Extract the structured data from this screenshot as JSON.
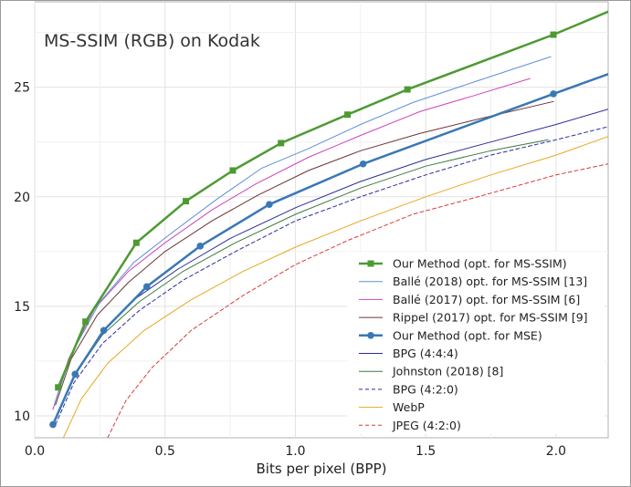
{
  "chart_data": {
    "type": "line",
    "title": "MS-SSIM (RGB) on Kodak",
    "xlabel": "Bits per pixel (BPP)",
    "ylabel": "",
    "xlim": [
      0.0,
      2.2
    ],
    "ylim": [
      9.0,
      28.9
    ],
    "xticks": [
      0.0,
      0.5,
      1.0,
      1.5,
      2.0
    ],
    "xtick_labels": [
      "0.0",
      "0.5",
      "1.0",
      "1.5",
      "2.0"
    ],
    "yticks": [
      10,
      15,
      20,
      25
    ],
    "ytick_labels": [
      "10",
      "15",
      "20",
      "25"
    ],
    "grid": true,
    "legend_position": "bottom-right",
    "series": [
      {
        "name": "Our Method (opt. for MS-SSIM)",
        "color": "#4d9a32",
        "style": "solid",
        "width": 2.5,
        "marker": "square",
        "x": [
          0.09,
          0.195,
          0.39,
          0.58,
          0.76,
          0.945,
          1.2,
          1.43,
          1.99,
          2.2
        ],
        "y": [
          11.3,
          14.3,
          17.9,
          19.8,
          21.2,
          22.45,
          23.75,
          24.9,
          27.4,
          28.45
        ]
      },
      {
        "name": "Ballé (2018) opt. for MS-SSIM [13]",
        "color": "#5e8fd9",
        "style": "solid",
        "width": 1.0,
        "marker": "none",
        "x": [
          0.075,
          0.14,
          0.25,
          0.38,
          0.52,
          0.7,
          0.87,
          1.05,
          1.25,
          1.45,
          1.7,
          1.98
        ],
        "y": [
          10.5,
          12.8,
          15.2,
          17.0,
          18.3,
          19.9,
          21.3,
          22.2,
          23.3,
          24.3,
          25.3,
          26.4
        ]
      },
      {
        "name": "Ballé (2017) opt. for MS-SSIM [6]",
        "color": "#cc44bb",
        "style": "solid",
        "width": 1.0,
        "marker": "none",
        "x": [
          0.07,
          0.13,
          0.23,
          0.36,
          0.5,
          0.68,
          0.85,
          1.05,
          1.25,
          1.48,
          1.68,
          1.9
        ],
        "y": [
          10.3,
          12.6,
          14.9,
          16.6,
          17.9,
          19.4,
          20.6,
          21.8,
          22.8,
          23.9,
          24.6,
          25.4
        ]
      },
      {
        "name": "Rippel (2017) opt. for MS-SSIM [9]",
        "color": "#6b3535",
        "style": "solid",
        "width": 1.0,
        "marker": "none",
        "x": [
          0.08,
          0.14,
          0.24,
          0.36,
          0.5,
          0.68,
          0.86,
          1.05,
          1.25,
          1.48,
          1.72,
          1.99
        ],
        "y": [
          10.5,
          12.6,
          14.6,
          16.1,
          17.5,
          18.9,
          20.1,
          21.2,
          22.1,
          22.9,
          23.6,
          24.35
        ]
      },
      {
        "name": "Our Method (opt. for MSE)",
        "color": "#3a78b4",
        "style": "solid",
        "width": 2.5,
        "marker": "circle",
        "x": [
          0.07,
          0.155,
          0.265,
          0.43,
          0.635,
          0.9,
          1.26,
          1.99,
          2.2
        ],
        "y": [
          9.6,
          11.9,
          13.9,
          15.9,
          17.75,
          19.65,
          21.5,
          24.7,
          25.6
        ]
      },
      {
        "name": "BPG (4:4:4)",
        "color": "#2c2c9a",
        "style": "solid",
        "width": 1.0,
        "marker": "none",
        "x": [
          0.08,
          0.15,
          0.25,
          0.38,
          0.55,
          0.75,
          1.0,
          1.25,
          1.5,
          1.75,
          2.0,
          2.2
        ],
        "y": [
          9.8,
          11.8,
          13.7,
          15.3,
          16.7,
          18.1,
          19.5,
          20.7,
          21.7,
          22.5,
          23.3,
          24.0
        ]
      },
      {
        "name": "Johnston (2018) [8]",
        "color": "#3d7a3d",
        "style": "solid",
        "width": 1.0,
        "marker": "none",
        "x": [
          0.08,
          0.15,
          0.26,
          0.4,
          0.57,
          0.77,
          1.0,
          1.25,
          1.5,
          1.75,
          1.97
        ],
        "y": [
          9.9,
          11.8,
          13.7,
          15.2,
          16.6,
          17.9,
          19.2,
          20.4,
          21.4,
          22.1,
          22.6
        ]
      },
      {
        "name": "BPG (4:2:0)",
        "color": "#2c2c9a",
        "style": "dashed",
        "width": 1.0,
        "marker": "none",
        "x": [
          0.08,
          0.15,
          0.26,
          0.4,
          0.57,
          0.77,
          1.0,
          1.25,
          1.5,
          1.75,
          2.0,
          2.2
        ],
        "y": [
          9.6,
          11.5,
          13.3,
          14.8,
          16.2,
          17.5,
          18.9,
          20.0,
          21.0,
          21.9,
          22.6,
          23.2
        ]
      },
      {
        "name": "WebP",
        "color": "#e8a820",
        "style": "solid",
        "width": 1.0,
        "marker": "none",
        "x": [
          0.11,
          0.18,
          0.28,
          0.42,
          0.6,
          0.8,
          1.0,
          1.25,
          1.5,
          1.75,
          2.0,
          2.2
        ],
        "y": [
          9.0,
          10.8,
          12.4,
          13.9,
          15.3,
          16.6,
          17.7,
          18.9,
          20.0,
          21.0,
          21.9,
          22.75
        ]
      },
      {
        "name": "JPEG (4:2:0)",
        "color": "#d83a3a",
        "style": "dashed",
        "width": 1.0,
        "marker": "none",
        "x": [
          0.28,
          0.35,
          0.45,
          0.6,
          0.8,
          1.0,
          1.2,
          1.45,
          1.7,
          2.0,
          2.2
        ],
        "y": [
          9.0,
          10.7,
          12.2,
          13.9,
          15.5,
          16.9,
          18.0,
          19.2,
          20.0,
          21.0,
          21.5
        ]
      }
    ]
  }
}
